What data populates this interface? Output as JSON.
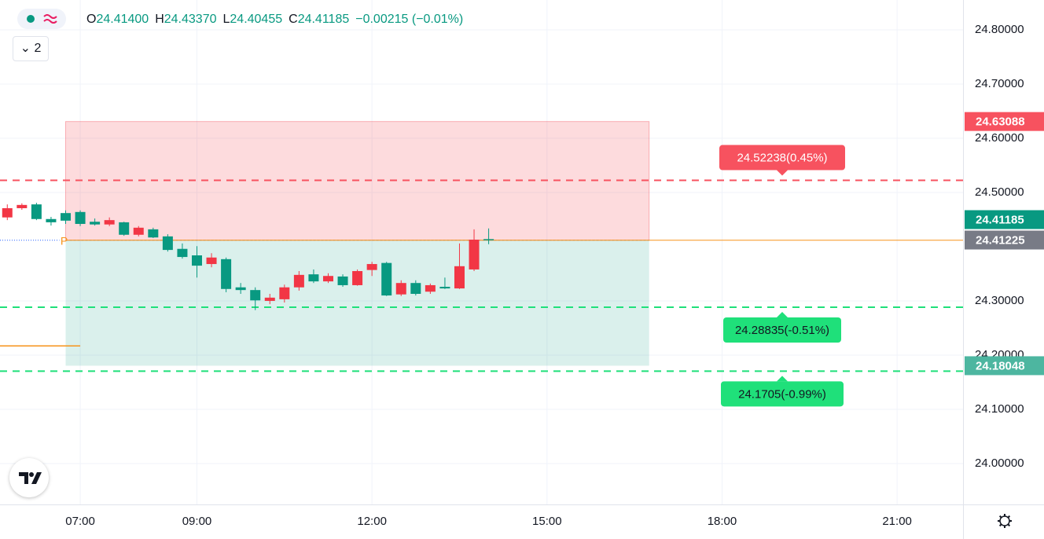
{
  "chart_data": {
    "type": "candlestick",
    "indicator_count": "2",
    "ohlc_header": [
      {
        "key": "O",
        "value": "24.41400"
      },
      {
        "key": "H",
        "value": "24.43370"
      },
      {
        "key": "L",
        "value": "24.40455"
      },
      {
        "key": "C",
        "value": "24.41185"
      }
    ],
    "change": "−0.00215 (−0.01%)",
    "up_color": "#f23645",
    "down_color": "#089981",
    "x": [
      5.75,
      6,
      6.25,
      6.5,
      6.75,
      7,
      7.25,
      7.5,
      7.75,
      8,
      8.25,
      8.5,
      8.75,
      9,
      9.25,
      9.5,
      9.75,
      10,
      10.25,
      10.5,
      10.75,
      11,
      11.25,
      11.5,
      11.75,
      12,
      12.25,
      12.5,
      12.75,
      13,
      13.25,
      13.5,
      13.75,
      14
    ],
    "open": [
      24.454,
      24.471,
      24.478,
      24.451,
      24.462,
      24.464,
      24.446,
      24.441,
      24.445,
      24.422,
      24.432,
      24.419,
      24.396,
      24.384,
      24.368,
      24.377,
      24.325,
      24.32,
      24.3,
      24.303,
      24.325,
      24.349,
      24.336,
      24.345,
      24.329,
      24.357,
      24.37,
      24.312,
      24.333,
      24.317,
      24.326,
      24.323,
      24.358,
      24.414
    ],
    "high": [
      24.478,
      24.48,
      24.481,
      24.455,
      24.467,
      24.467,
      24.452,
      24.454,
      24.446,
      24.438,
      24.435,
      24.423,
      24.406,
      24.401,
      24.388,
      24.38,
      24.333,
      24.325,
      24.313,
      24.33,
      24.355,
      24.358,
      24.351,
      24.349,
      24.358,
      24.372,
      24.372,
      24.338,
      24.338,
      24.332,
      24.343,
      24.406,
      24.432,
      24.4337
    ],
    "low": [
      24.449,
      24.468,
      24.449,
      24.439,
      24.442,
      24.438,
      24.439,
      24.438,
      24.42,
      24.419,
      24.416,
      24.391,
      24.378,
      24.343,
      24.362,
      24.316,
      24.313,
      24.283,
      24.294,
      24.297,
      24.319,
      24.333,
      24.333,
      24.326,
      24.328,
      24.346,
      24.309,
      24.309,
      24.31,
      24.313,
      24.322,
      24.322,
      24.355,
      24.40455
    ],
    "close": [
      24.471,
      24.477,
      24.451,
      24.445,
      24.448,
      24.442,
      24.441,
      24.449,
      24.422,
      24.435,
      24.417,
      24.394,
      24.381,
      24.365,
      24.38,
      24.322,
      24.32,
      24.301,
      24.306,
      24.325,
      24.348,
      24.336,
      24.346,
      24.329,
      24.355,
      24.368,
      24.31,
      24.333,
      24.313,
      24.329,
      24.323,
      24.364,
      24.413,
      24.41185
    ],
    "xlim": [
      5.625,
      22.13
    ],
    "xticks": [
      {
        "value": 7,
        "label": "07:00"
      },
      {
        "value": 9,
        "label": "09:00"
      },
      {
        "value": 12,
        "label": "12:00"
      },
      {
        "value": 15,
        "label": "15:00"
      },
      {
        "value": 18,
        "label": "18:00"
      },
      {
        "value": 21,
        "label": "21:00"
      }
    ],
    "ylim": [
      23.9246,
      24.855
    ],
    "yticks": [
      {
        "value": 24.0,
        "label": "24.00000"
      },
      {
        "value": 24.1,
        "label": "24.10000"
      },
      {
        "value": 24.2,
        "label": "24.20000"
      },
      {
        "value": 24.3,
        "label": "24.30000"
      },
      {
        "value": 24.5,
        "label": "24.50000"
      },
      {
        "value": 24.6,
        "label": "24.60000"
      },
      {
        "value": 24.7,
        "label": "24.70000"
      },
      {
        "value": 24.8,
        "label": "24.80000"
      }
    ],
    "grid": true,
    "position": {
      "start": 6.75,
      "end": 16.75,
      "target": 24.63088,
      "entry": 24.41185,
      "stop": 24.18048
    },
    "entry_marker": "P",
    "side_line": {
      "value": 24.217,
      "end": 7
    },
    "levels": [
      {
        "value": 24.52238,
        "label": "24.52238(0.45%)",
        "color": "#f7525f",
        "side": "above"
      },
      {
        "value": 24.28835,
        "label": "24.28835(-0.51%)",
        "color": "#1fe07a",
        "side": "below"
      },
      {
        "value": 24.1705,
        "label": "24.1705(-0.99%)",
        "color": "#1fe07a",
        "side": "below"
      }
    ],
    "price_badges": [
      {
        "value": 24.63088,
        "color": "#f7525f"
      },
      {
        "value": 24.41225,
        "color": "#787b86"
      },
      {
        "value": 24.41185,
        "color": "#089981"
      },
      {
        "value": 24.18048,
        "color": "#4db6a0"
      }
    ]
  }
}
